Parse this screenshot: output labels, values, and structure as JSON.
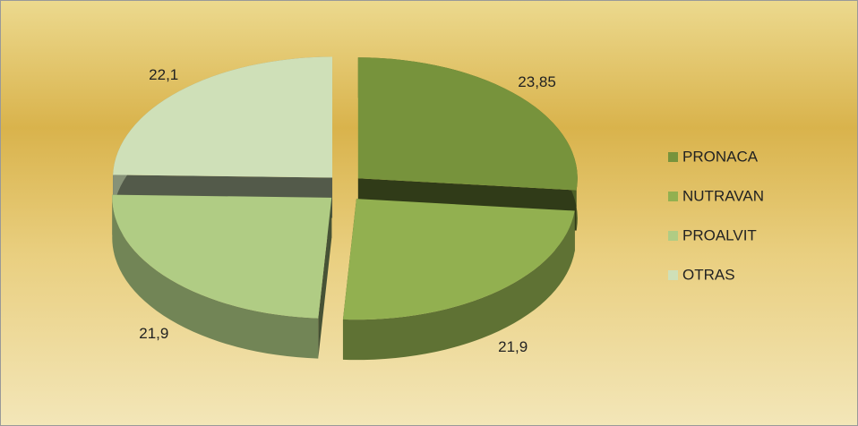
{
  "chart_data": {
    "type": "pie3d",
    "categories": [
      "PRONACA",
      "NUTRAVAN",
      "PROALVIT",
      "OTRAS"
    ],
    "values": [
      23.85,
      21.9,
      21.9,
      22.1
    ],
    "value_labels": [
      "23,85",
      "21,9",
      "21,9",
      "22,1"
    ],
    "colors": [
      "#77933c",
      "#92b050",
      "#b0cc84",
      "#cfe0b8"
    ],
    "legend": "right"
  }
}
